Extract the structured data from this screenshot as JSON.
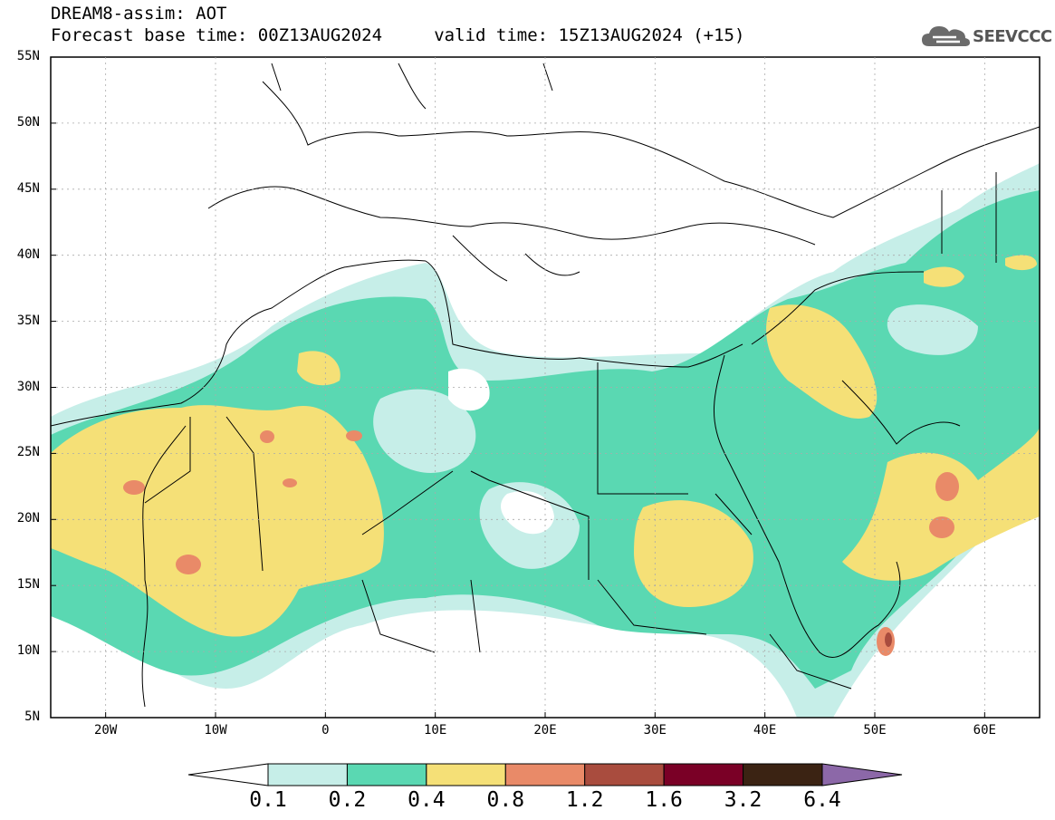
{
  "header": {
    "line1": "DREAM8-assim: AOT",
    "line2": "Forecast base time: 00Z13AUG2024     valid time: 15Z13AUG2024 (+15)"
  },
  "logo": {
    "text": "SEEVCCC",
    "icon": "cloud-icon"
  },
  "axes": {
    "lat_labels": [
      "55N",
      "50N",
      "45N",
      "40N",
      "35N",
      "30N",
      "25N",
      "20N",
      "15N",
      "10N",
      "5N"
    ],
    "lon_labels": [
      "20W",
      "10W",
      "0",
      "10E",
      "20E",
      "30E",
      "40E",
      "50E",
      "60E"
    ],
    "lon_range": [
      -25,
      65
    ],
    "lat_range": [
      5,
      55
    ]
  },
  "colorbar": {
    "labels": [
      "0.1",
      "0.2",
      "0.4",
      "0.8",
      "1.2",
      "1.6",
      "3.2",
      "6.4"
    ],
    "colors": [
      "#ffffff",
      "#c6eee8",
      "#5ad8b2",
      "#f5e077",
      "#e98a68",
      "#a94c3e",
      "#7a0026",
      "#3b2313",
      "#8c68a8"
    ]
  },
  "colors": {
    "bin1": "#c6eee8",
    "bin2": "#5ad8b2",
    "bin3": "#f5e077",
    "bin4": "#e98a68",
    "bin5": "#a94c3e"
  }
}
